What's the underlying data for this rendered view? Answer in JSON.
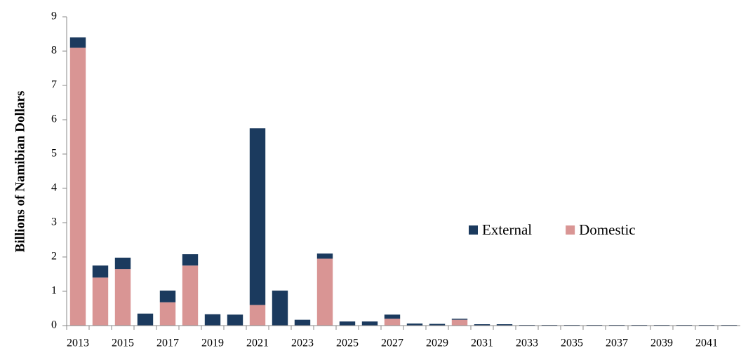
{
  "chart_data": {
    "type": "stacked_bar",
    "y_label": "Billions of Namibian Dollars",
    "categories": [
      "2013",
      null,
      "2015",
      null,
      "2017",
      null,
      "2019",
      null,
      "2021",
      null,
      "2023",
      null,
      "2025",
      null,
      "2027",
      null,
      "2029",
      null,
      "2031",
      null,
      "2033",
      null,
      "2035",
      null,
      "2037",
      null,
      "2039",
      null,
      "2041",
      null
    ],
    "series": [
      {
        "name": "Domestic",
        "color": "#d99594",
        "values": [
          8.1,
          1.4,
          1.65,
          0,
          0.68,
          1.75,
          0,
          0,
          0.6,
          0,
          0,
          1.95,
          0,
          0,
          0.2,
          0,
          0,
          0.17,
          0,
          0,
          0,
          0,
          0,
          0,
          0,
          0,
          0,
          0,
          0,
          0
        ]
      },
      {
        "name": "External",
        "color": "#1b3a5e",
        "values": [
          0.3,
          0.35,
          0.33,
          0.35,
          0.34,
          0.33,
          0.33,
          0.32,
          5.15,
          1.02,
          0.17,
          0.15,
          0.12,
          0.12,
          0.12,
          0.06,
          0.05,
          0.03,
          0.04,
          0.04,
          0.02,
          0.02,
          0.02,
          0.02,
          0.02,
          0.02,
          0.02,
          0.02,
          0.02,
          0.02
        ]
      }
    ],
    "legend_order": [
      "External",
      "Domestic"
    ],
    "ylim": [
      0,
      9
    ],
    "yticks": [
      0,
      1,
      2,
      3,
      4,
      5,
      6,
      7,
      8,
      9
    ],
    "grid": false
  }
}
